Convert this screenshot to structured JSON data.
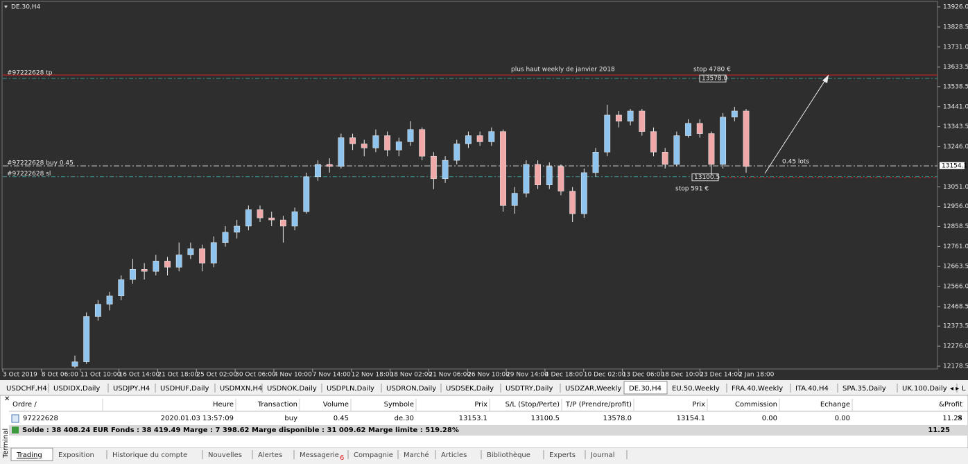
{
  "chart_data": {
    "type": "candlestick",
    "title": "DE.30,H4",
    "ylim": [
      12178.5,
      13926
    ],
    "yticks": [
      {
        "value": 13926,
        "label": "13926.0"
      },
      {
        "value": 13828.5,
        "label": "13828.5"
      },
      {
        "value": 13731,
        "label": "13731.0"
      },
      {
        "value": 13633.5,
        "label": "13633.5"
      },
      {
        "value": 13538.5,
        "label": "13538.5"
      },
      {
        "value": 13441,
        "label": "13441.0"
      },
      {
        "value": 13343.5,
        "label": "13343.5"
      },
      {
        "value": 13246,
        "label": "13246.0"
      },
      {
        "value": 13051,
        "label": "13051.0"
      },
      {
        "value": 12956,
        "label": "12956.0"
      },
      {
        "value": 12858.5,
        "label": "12858.5"
      },
      {
        "value": 12761,
        "label": "12761.0"
      },
      {
        "value": 12663.5,
        "label": "12663.5"
      },
      {
        "value": 12566,
        "label": "12566.0"
      },
      {
        "value": 12468.5,
        "label": "12468.5"
      },
      {
        "value": 12373.5,
        "label": "12373.5"
      },
      {
        "value": 12276,
        "label": "12276.0"
      },
      {
        "value": 12178.5,
        "label": "12178.5"
      }
    ],
    "xticks": [
      "3 Oct 2019",
      "8 Oct 06:00",
      "11 Oct 10:00",
      "16 Oct 14:00",
      "21 Oct 18:00",
      "25 Oct 02:00",
      "30 Oct 06:00",
      "4 Nov 10:00",
      "7 Nov 14:00",
      "12 Nov 18:00",
      "18 Nov 02:00",
      "21 Nov 06:00",
      "26 Nov 10:00",
      "29 Nov 14:00",
      "4 Dec 18:00",
      "10 Dec 02:00",
      "13 Dec 06:00",
      "18 Dec 10:00",
      "23 Dec 14:00",
      "2 Jan 18:00"
    ],
    "up_color": "#8ec4ee",
    "down_color": "#f0a8a8",
    "candles": [
      [
        12178,
        12230,
        12170,
        12200
      ],
      [
        12200,
        12440,
        12190,
        12420
      ],
      [
        12420,
        12500,
        12400,
        12480
      ],
      [
        12480,
        12540,
        12450,
        12520
      ],
      [
        12520,
        12620,
        12500,
        12600
      ],
      [
        12600,
        12700,
        12580,
        12650
      ],
      [
        12650,
        12680,
        12600,
        12640
      ],
      [
        12640,
        12720,
        12620,
        12690
      ],
      [
        12690,
        12710,
        12620,
        12660
      ],
      [
        12660,
        12780,
        12640,
        12720
      ],
      [
        12720,
        12780,
        12700,
        12750
      ],
      [
        12750,
        12770,
        12640,
        12680
      ],
      [
        12680,
        12810,
        12660,
        12780
      ],
      [
        12780,
        12860,
        12760,
        12830
      ],
      [
        12830,
        12890,
        12800,
        12860
      ],
      [
        12860,
        12960,
        12840,
        12940
      ],
      [
        12940,
        12960,
        12880,
        12900
      ],
      [
        12900,
        12930,
        12860,
        12890
      ],
      [
        12890,
        12910,
        12780,
        12860
      ],
      [
        12860,
        12950,
        12840,
        12930
      ],
      [
        12930,
        13120,
        12920,
        13100
      ],
      [
        13100,
        13180,
        13080,
        13160
      ],
      [
        13160,
        13190,
        13120,
        13150
      ],
      [
        13150,
        13310,
        13140,
        13290
      ],
      [
        13290,
        13310,
        13230,
        13260
      ],
      [
        13260,
        13280,
        13200,
        13240
      ],
      [
        13240,
        13330,
        13220,
        13300
      ],
      [
        13300,
        13320,
        13200,
        13230
      ],
      [
        13230,
        13290,
        13200,
        13270
      ],
      [
        13270,
        13370,
        13250,
        13330
      ],
      [
        13330,
        13340,
        13180,
        13200
      ],
      [
        13200,
        13220,
        13040,
        13090
      ],
      [
        13090,
        13200,
        13070,
        13180
      ],
      [
        13180,
        13280,
        13160,
        13260
      ],
      [
        13260,
        13320,
        13240,
        13300
      ],
      [
        13300,
        13320,
        13250,
        13270
      ],
      [
        13270,
        13340,
        13250,
        13320
      ],
      [
        13320,
        13330,
        12930,
        12960
      ],
      [
        12960,
        13050,
        12920,
        13020
      ],
      [
        13020,
        13180,
        13000,
        13160
      ],
      [
        13160,
        13180,
        13040,
        13060
      ],
      [
        13060,
        13170,
        13040,
        13150
      ],
      [
        13150,
        13160,
        13010,
        13030
      ],
      [
        13030,
        13050,
        12880,
        12920
      ],
      [
        12920,
        13140,
        12900,
        13120
      ],
      [
        13120,
        13240,
        13100,
        13220
      ],
      [
        13220,
        13450,
        13200,
        13400
      ],
      [
        13400,
        13420,
        13340,
        13370
      ],
      [
        13370,
        13430,
        13350,
        13420
      ],
      [
        13420,
        13430,
        13300,
        13320
      ],
      [
        13320,
        13340,
        13200,
        13220
      ],
      [
        13220,
        13240,
        13140,
        13160
      ],
      [
        13160,
        13320,
        13150,
        13300
      ],
      [
        13300,
        13380,
        13290,
        13360
      ],
      [
        13360,
        13380,
        13290,
        13310
      ],
      [
        13310,
        13320,
        13110,
        13160
      ],
      [
        13160,
        13410,
        13140,
        13390
      ],
      [
        13390,
        13440,
        13370,
        13420
      ],
      [
        13420,
        13430,
        13120,
        13150
      ]
    ],
    "levels": {
      "tp": {
        "name": "#97222628 tp",
        "value": 13578,
        "label": "13578.0"
      },
      "buy": {
        "name": "#97222628 buy 0.45",
        "value": 13153.1
      },
      "sl": {
        "name": "#97222628 sl",
        "value": 13100.5,
        "label": "13100.5"
      },
      "current": {
        "value": 13154.1,
        "label": "13154.1"
      }
    },
    "annotations": [
      "plus haut weekly de janvier 2018",
      "stop 4780 €",
      "0.45 lots",
      "stop 591 €"
    ]
  },
  "chart_tabs": [
    "USDCHF,H4",
    "USDIDX,Daily",
    "USDJPY,H4",
    "USDHUF,Daily",
    "USDMXN,H4",
    "USDNOK,Daily",
    "USDPLN,Daily",
    "USDRON,Daily",
    "USDSEK,Daily",
    "USDTRY,Daily",
    "USDZAR,Weekly",
    "DE.30,H4",
    "EU.50,Weekly",
    "FRA.40,Weekly",
    "ITA.40,H4",
    "SPA.35,Daily",
    "UK.100,Daily",
    "L"
  ],
  "terminal": {
    "label": "Terminal",
    "columns": [
      "Ordre  /",
      "Heure",
      "Transaction",
      "Volume",
      "Symbole",
      "Prix",
      "S/L (Stop/Perte)",
      "T/P (Prendre/profit)",
      "Prix",
      "Commission",
      "Echange",
      "&Profit"
    ],
    "rows": [
      [
        "97222628",
        "2020.01.03 13:57:09",
        "buy",
        "0.45",
        "de.30",
        "13153.1",
        "13100.5",
        "13578.0",
        "13154.1",
        "0.00",
        "0.00",
        "11.25"
      ]
    ],
    "summary": "Solde : 38 408.24 EUR  Fonds : 38 419.49  Marge : 7 398.62  Marge disponible : 31 009.62  Marge limite : 519.28%",
    "summary_profit": "11.25",
    "tabs": [
      "Trading",
      "Exposition",
      "Historique du compte",
      "Nouvelles",
      "Alertes",
      "Messagerie",
      "Compagnie",
      "Marché",
      "Articles",
      "Bibliothèque",
      "Experts",
      "Journal"
    ],
    "messages_badge": "6"
  }
}
